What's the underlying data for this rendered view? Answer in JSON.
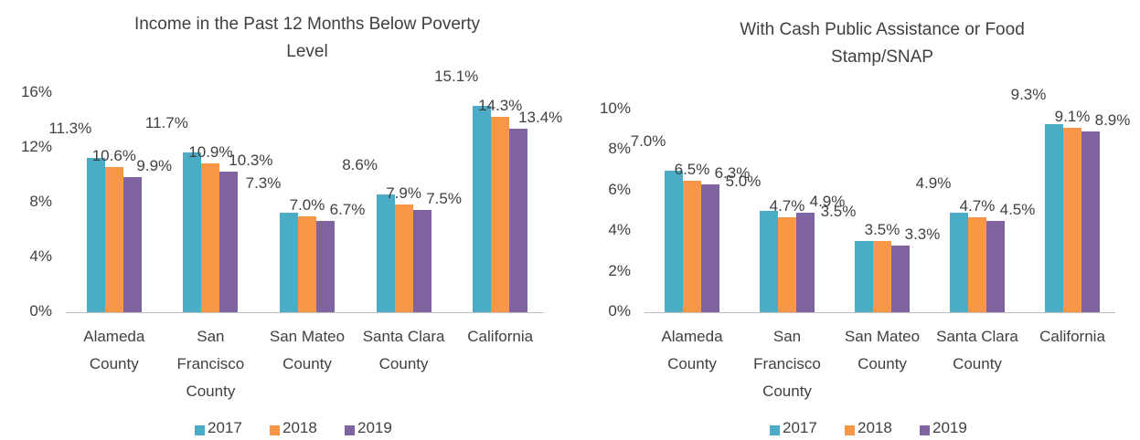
{
  "chart_data": [
    {
      "type": "bar",
      "title": "Income in the Past 12 Months Below Poverty Level",
      "categories": [
        "Alameda County",
        "San Francisco County",
        "San Mateo County",
        "Santa Clara County",
        "California"
      ],
      "series": [
        {
          "name": "2017",
          "color": "#4bacc6",
          "values": [
            11.3,
            11.7,
            7.3,
            8.6,
            15.1
          ],
          "value_labels": [
            "11.3%",
            "11.7%",
            "7.3%",
            "8.6%",
            "15.1%"
          ]
        },
        {
          "name": "2018",
          "color": "#f79646",
          "values": [
            10.6,
            10.9,
            7.0,
            7.9,
            14.3
          ],
          "value_labels": [
            "10.6%",
            "10.9%",
            "7.0%",
            "7.9%",
            "14.3%"
          ]
        },
        {
          "name": "2019",
          "color": "#8064a2",
          "values": [
            9.9,
            10.3,
            6.7,
            7.5,
            13.4
          ],
          "value_labels": [
            "9.9%",
            "10.3%",
            "6.7%",
            "7.5%",
            "13.4%"
          ]
        }
      ],
      "ylim": [
        0,
        16
      ],
      "yticks": [
        {
          "value": 0,
          "label": "0%"
        },
        {
          "value": 4,
          "label": "4%"
        },
        {
          "value": 8,
          "label": "8%"
        },
        {
          "value": 12,
          "label": "12%"
        },
        {
          "value": 16,
          "label": "16%"
        }
      ],
      "grid": false,
      "legend": "bottom"
    },
    {
      "type": "bar",
      "title": "With Cash Public Assistance or Food Stamp/SNAP",
      "categories": [
        "Alameda County",
        "San Francisco County",
        "San Mateo County",
        "Santa Clara County",
        "California"
      ],
      "series": [
        {
          "name": "2017",
          "color": "#4bacc6",
          "values": [
            7.0,
            5.0,
            3.5,
            4.9,
            9.3
          ],
          "value_labels": [
            "7.0%",
            "5.0%",
            "3.5%",
            "4.9%",
            "9.3%"
          ]
        },
        {
          "name": "2018",
          "color": "#f79646",
          "values": [
            6.5,
            4.7,
            3.5,
            4.7,
            9.1
          ],
          "value_labels": [
            "6.5%",
            "4.7%",
            "3.5%",
            "4.7%",
            "9.1%"
          ]
        },
        {
          "name": "2019",
          "color": "#8064a2",
          "values": [
            6.3,
            4.9,
            3.3,
            4.5,
            8.9
          ],
          "value_labels": [
            "6.3%",
            "4.9%",
            "3.3%",
            "4.5%",
            "8.9%"
          ]
        }
      ],
      "ylim": [
        0,
        10
      ],
      "yticks": [
        {
          "value": 0,
          "label": "0%"
        },
        {
          "value": 2,
          "label": "2%"
        },
        {
          "value": 4,
          "label": "4%"
        },
        {
          "value": 6,
          "label": "6%"
        },
        {
          "value": 8,
          "label": "8%"
        },
        {
          "value": 10,
          "label": "10%"
        }
      ],
      "grid": false,
      "legend": "bottom"
    }
  ]
}
